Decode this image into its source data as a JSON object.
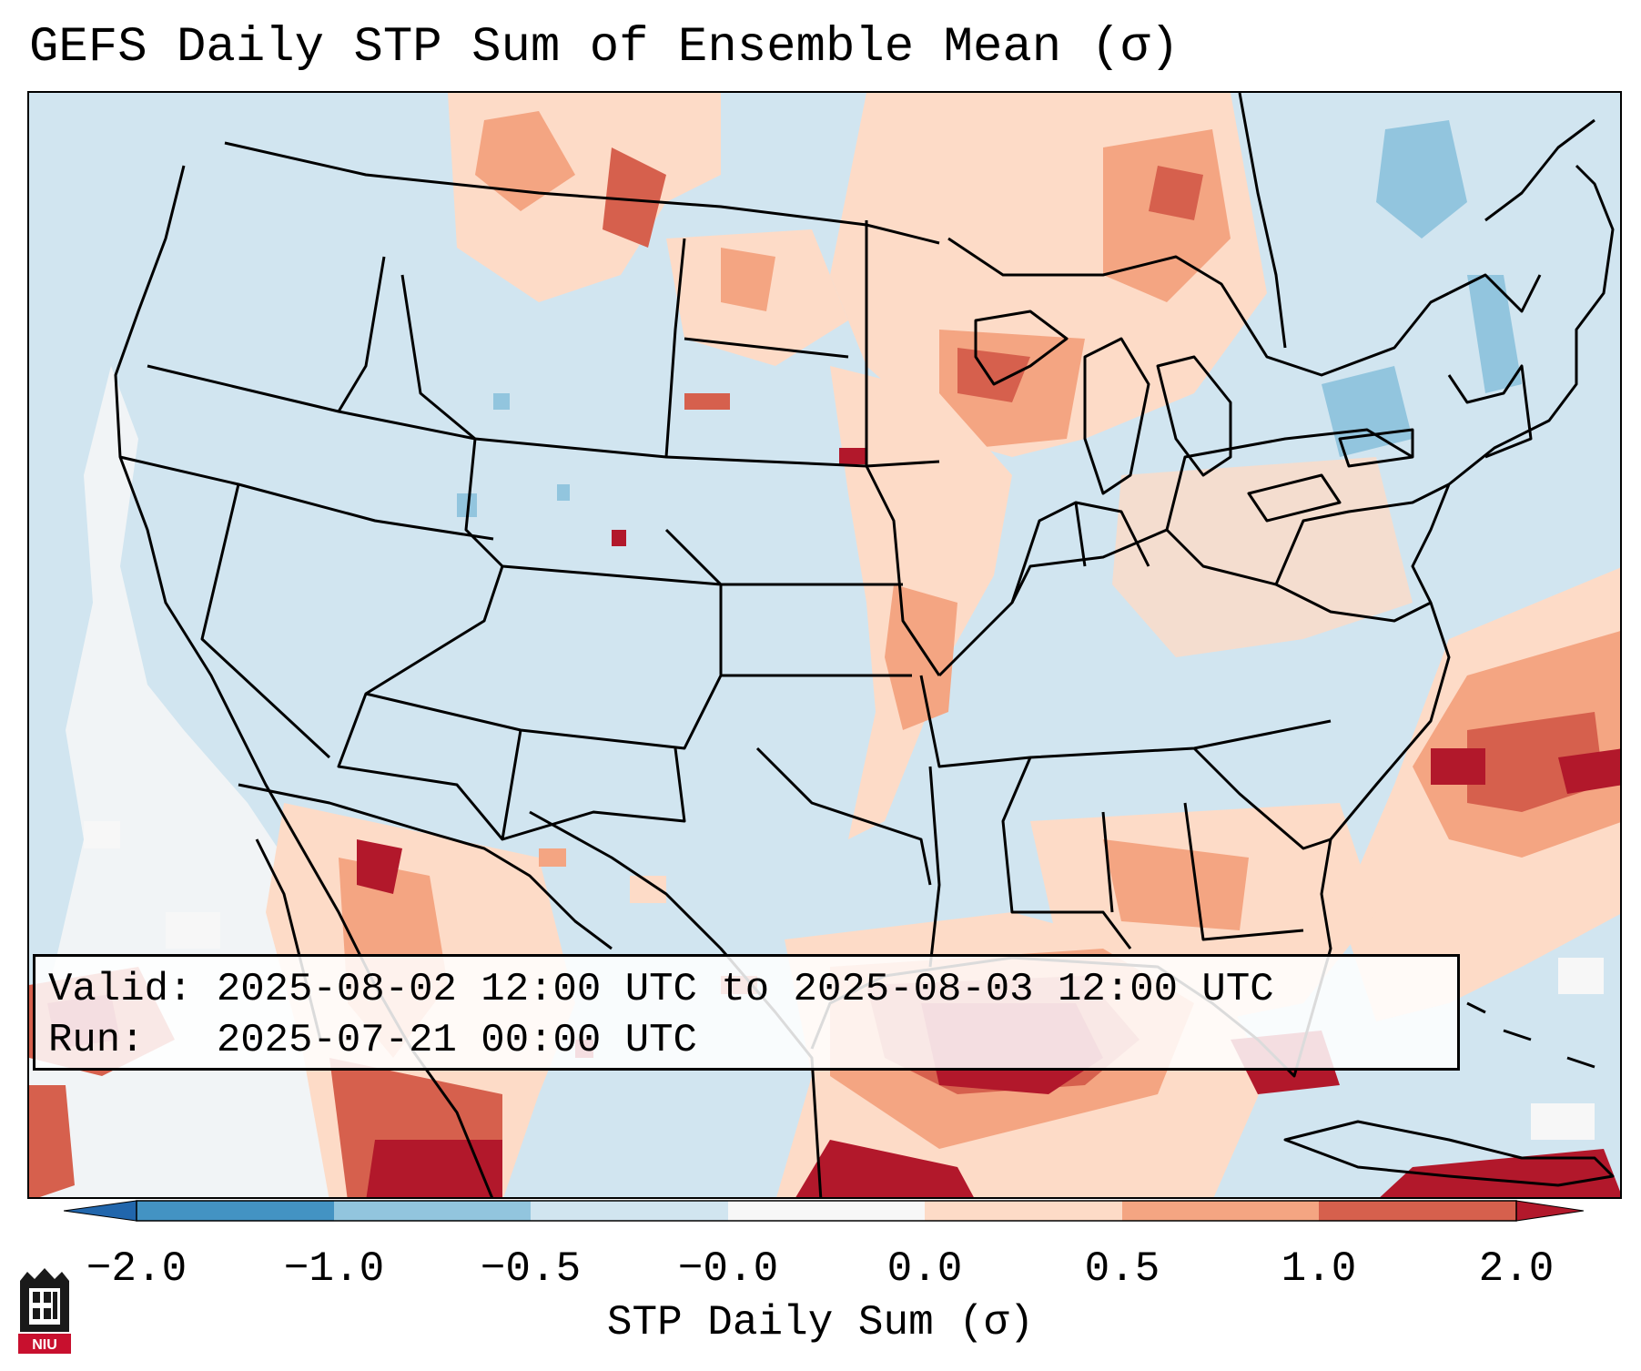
{
  "title": "GEFS Daily STP Sum of Ensemble Mean (σ)",
  "infobox": {
    "valid_label": "Valid:",
    "valid_value": "2025-08-02 12:00 UTC to 2025-08-03 12:00 UTC",
    "run_label": "Run:",
    "run_value": "2025-07-21 00:00 UTC"
  },
  "colorbar": {
    "label": "STP Daily Sum (σ)",
    "ticks": [
      "−2.0",
      "−1.0",
      "−0.5",
      "−0.0",
      "0.0",
      "0.5",
      "1.0",
      "2.0"
    ],
    "colors": [
      "#2166ac",
      "#4393c3",
      "#92c5de",
      "#d1e5f0",
      "#f7f7f7",
      "#fddbc7",
      "#f4a582",
      "#d6604d",
      "#b2182b"
    ]
  },
  "logo": {
    "text": "NIU",
    "icon": "niu-logo-icon"
  }
}
